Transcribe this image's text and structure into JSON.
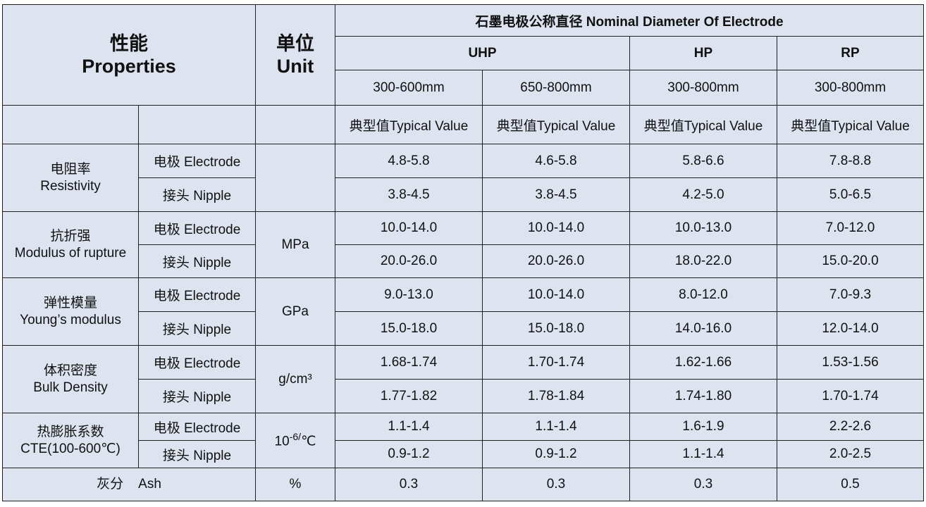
{
  "header": {
    "properties_cn": "性能",
    "properties_en": "Properties",
    "unit_cn": "单位",
    "unit_en": "Unit",
    "nominal": "石墨电极公称直径  Nominal Diameter Of Electrode",
    "grades": [
      "UHP",
      "HP",
      "RP"
    ],
    "diameters": [
      "300-600mm",
      "650-800mm",
      "300-800mm",
      "300-800mm"
    ],
    "typical": [
      "典型值Typical Value",
      "典型值Typical Value",
      "典型值Typical Value",
      "典型值Typical Value"
    ]
  },
  "labels": {
    "electrode": "电极 Electrode",
    "nipple": "接头 Nipple"
  },
  "rows": [
    {
      "name_cn": "电阻率",
      "name_en": "Resistivity",
      "unit": "",
      "electrode": [
        "4.8-5.8",
        "4.6-5.8",
        "5.8-6.6",
        "7.8-8.8"
      ],
      "nipple": [
        "3.8-4.5",
        "3.8-4.5",
        "4.2-5.0",
        "5.0-6.5"
      ]
    },
    {
      "name_cn": "抗折强",
      "name_en": "Modulus of rupture",
      "unit": "MPa",
      "electrode": [
        "10.0-14.0",
        "10.0-14.0",
        "10.0-13.0",
        "7.0-12.0"
      ],
      "nipple": [
        "20.0-26.0",
        "20.0-26.0",
        "18.0-22.0",
        "15.0-20.0"
      ]
    },
    {
      "name_cn": "弹性模量",
      "name_en": "Young’s modulus",
      "unit": "GPa",
      "electrode": [
        "9.0-13.0",
        "10.0-14.0",
        "8.0-12.0",
        "7.0-9.3"
      ],
      "nipple": [
        "15.0-18.0",
        "15.0-18.0",
        "14.0-16.0",
        "12.0-14.0"
      ]
    },
    {
      "name_cn": "体积密度",
      "name_en": "Bulk Density",
      "unit": "g/cm³",
      "electrode": [
        "1.68-1.74",
        "1.70-1.74",
        "1.62-1.66",
        "1.53-1.56"
      ],
      "nipple": [
        "1.77-1.82",
        "1.78-1.84",
        "1.74-1.80",
        "1.70-1.74"
      ]
    },
    {
      "name_cn": "热膨胀系数",
      "name_en": "CTE(100-600℃)",
      "unit_base": "10",
      "unit_sup": "-6/",
      "unit_tail": "℃",
      "electrode": [
        "1.1-1.4",
        "1.1-1.4",
        "1.6-1.9",
        "2.2-2.6"
      ],
      "nipple": [
        "0.9-1.2",
        "0.9-1.2",
        "1.1-1.4",
        "2.0-2.5"
      ]
    }
  ],
  "ash": {
    "label": "灰分    Ash",
    "unit": "%",
    "values": [
      "0.3",
      "0.3",
      "0.3",
      "0.5"
    ]
  }
}
